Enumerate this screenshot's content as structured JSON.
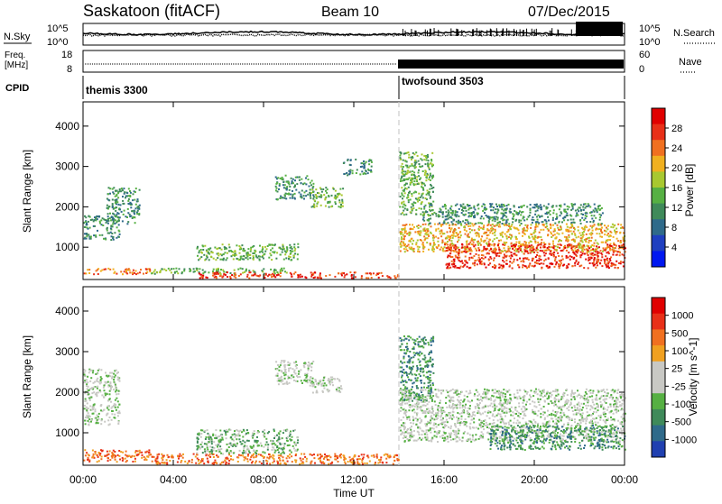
{
  "header": {
    "title": "Saskatoon (fitACF)",
    "beam": "Beam 10",
    "date": "07/Dec/2015"
  },
  "colors": {
    "power_scale": [
      "#0018f0",
      "#1f3fc0",
      "#2f6a8a",
      "#3f8a5a",
      "#56b043",
      "#a8c830",
      "#f0b020",
      "#f07020",
      "#e83018",
      "#e00000"
    ],
    "velocity_scale": [
      "#2040b0",
      "#2f6a8a",
      "#3f8a5a",
      "#56b043",
      "#c8c8c4",
      "#c8c8c4",
      "#f0a020",
      "#f07020",
      "#e83018",
      "#e00000"
    ],
    "dashed_line": "#c8c8c8"
  },
  "noise_panel": {
    "left_label": "N.Sky",
    "right_label": "N.Search",
    "left_ticks": [
      "10^5",
      "10^0"
    ],
    "right_ticks": [
      "10^5",
      "10^0"
    ]
  },
  "freq_panel": {
    "left_label_line1": "Freq.",
    "left_label_line2": "[MHz]",
    "right_label": "Nave",
    "left_ticks": [
      "18",
      "8"
    ],
    "right_ticks": [
      "60",
      "0"
    ]
  },
  "cpid": {
    "label": "CPID",
    "segments": [
      {
        "name": "themis 3300",
        "start_h": 0,
        "end_h": 14
      },
      {
        "name": "twofsound 3503",
        "start_h": 14,
        "end_h": 24
      }
    ]
  },
  "chart_data": [
    {
      "type": "heatmap",
      "title": "",
      "xlabel": "Time UT",
      "ylabel": "Slant Range [km]",
      "xlim": [
        0,
        24
      ],
      "ylim": [
        200,
        4600
      ],
      "y_ticks": [
        "1000",
        "2000",
        "3000",
        "4000"
      ],
      "colorbar_label": "Power [dB]",
      "colorbar_ticks": [
        "4",
        "8",
        "12",
        "16",
        "20",
        "24",
        "28"
      ],
      "scatter_regions": [
        {
          "t0": 0.0,
          "t1": 1.6,
          "r0": 1200,
          "r1": 1800,
          "v": 8
        },
        {
          "t0": 1.0,
          "t1": 2.5,
          "r0": 1600,
          "r1": 2500,
          "v": 9
        },
        {
          "t0": 0.0,
          "t1": 3.0,
          "r0": 350,
          "r1": 500,
          "v": 22
        },
        {
          "t0": 3.0,
          "t1": 9.0,
          "r0": 350,
          "r1": 500,
          "v": 12
        },
        {
          "t0": 5.0,
          "t1": 14.0,
          "r0": 250,
          "r1": 400,
          "v": 24
        },
        {
          "t0": 5.0,
          "t1": 9.5,
          "r0": 700,
          "r1": 1100,
          "v": 14
        },
        {
          "t0": 8.5,
          "t1": 10.2,
          "r0": 2200,
          "r1": 2800,
          "v": 11
        },
        {
          "t0": 10.0,
          "t1": 11.5,
          "r0": 2000,
          "r1": 2500,
          "v": 13
        },
        {
          "t0": 11.5,
          "t1": 12.8,
          "r0": 2800,
          "r1": 3200,
          "v": 10
        },
        {
          "t0": 14.0,
          "t1": 15.5,
          "r0": 1800,
          "r1": 3400,
          "v": 14
        },
        {
          "t0": 14.0,
          "t1": 24.0,
          "r0": 900,
          "r1": 1600,
          "v": 20
        },
        {
          "t0": 16.0,
          "t1": 24.0,
          "r0": 500,
          "r1": 1100,
          "v": 26
        },
        {
          "t0": 15.0,
          "t1": 23.0,
          "r0": 1600,
          "r1": 2100,
          "v": 11
        }
      ]
    },
    {
      "type": "heatmap",
      "title": "",
      "xlabel": "Time UT",
      "ylabel": "Slant Range [km]",
      "xlim": [
        0,
        24
      ],
      "ylim": [
        200,
        4600
      ],
      "x_ticks": [
        "00:00",
        "04:00",
        "08:00",
        "12:00",
        "16:00",
        "20:00",
        "00:00"
      ],
      "y_ticks": [
        "1000",
        "2000",
        "3000",
        "4000"
      ],
      "colorbar_label": "Velocity [m s^-1]",
      "colorbar_ticks": [
        "1000",
        "500",
        "100",
        "25",
        "-25",
        "-100",
        "-500",
        "-1000"
      ],
      "scatter_regions": [
        {
          "t0": 0.0,
          "t1": 1.6,
          "r0": 1200,
          "r1": 2600,
          "v": 0
        },
        {
          "t0": 0.0,
          "t1": 3.0,
          "r0": 300,
          "r1": 600,
          "v": -300
        },
        {
          "t0": 3.0,
          "t1": 14.0,
          "r0": 250,
          "r1": 500,
          "v": -150
        },
        {
          "t0": 5.0,
          "t1": 9.5,
          "r0": 500,
          "r1": 1100,
          "v": 60
        },
        {
          "t0": 8.5,
          "t1": 10.2,
          "r0": 2200,
          "r1": 2800,
          "v": 0
        },
        {
          "t0": 10.0,
          "t1": 11.5,
          "r0": 2000,
          "r1": 2400,
          "v": 0
        },
        {
          "t0": 14.0,
          "t1": 15.5,
          "r0": 1800,
          "r1": 3400,
          "v": 120
        },
        {
          "t0": 14.0,
          "t1": 24.0,
          "r0": 800,
          "r1": 2100,
          "v": 0
        },
        {
          "t0": 18.0,
          "t1": 24.0,
          "r0": 600,
          "r1": 1200,
          "v": 150
        }
      ]
    }
  ]
}
